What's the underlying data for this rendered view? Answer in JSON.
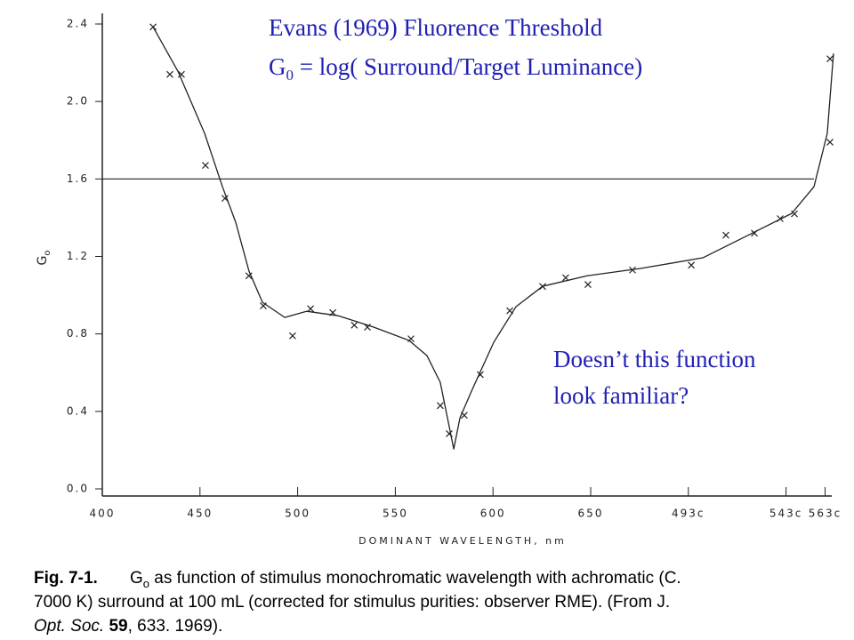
{
  "chart_data": {
    "type": "scatter",
    "title": "Evans (1969) Fluorence Threshold",
    "subtitle_parts": [
      "G",
      "0",
      " = log( Surround/Target Luminance)"
    ],
    "annotation": [
      "Doesn’t this function",
      "look familiar?"
    ],
    "xlabel": "DOMINANT WAVELENGTH, nm",
    "ylabel": "G",
    "ylabel_sub": "o",
    "xlim": [
      400,
      775
    ],
    "ylim": [
      0,
      2.4
    ],
    "xticks": [
      400,
      450,
      500,
      550,
      600,
      650,
      {
        "value": 700,
        "label": "493c"
      },
      {
        "value": 750,
        "label": "543c"
      },
      {
        "value": 770,
        "label": "563c"
      }
    ],
    "yticks": [
      {
        "value": 0,
        "label": "0.0"
      },
      0.4,
      0.8,
      1.2,
      1.6,
      {
        "value": 2,
        "label": "2.0"
      },
      2.4
    ],
    "reference_line": 1.6,
    "series": [
      {
        "name": "measured",
        "color": "#222",
        "x": [
          426.0,
          434.6,
          440.5,
          452.8,
          462.8,
          475.0,
          482.4,
          497.4,
          506.6,
          518.0,
          529.0,
          535.7,
          558.0,
          573.0,
          577.6,
          585.3,
          593.5,
          608.6,
          625.4,
          637.2,
          648.6,
          671.4,
          701.5,
          719.2,
          733.8,
          747.0,
          754.3,
          772.5,
          772.5
        ],
        "values": [
          2.385,
          2.14,
          2.14,
          1.67,
          1.5,
          1.1,
          0.945,
          0.79,
          0.93,
          0.91,
          0.845,
          0.835,
          0.775,
          0.43,
          0.285,
          0.38,
          0.59,
          0.92,
          1.045,
          1.09,
          1.055,
          1.13,
          1.155,
          1.31,
          1.32,
          1.395,
          1.42,
          1.79,
          2.22
        ]
      },
      {
        "name": "fit",
        "color": "#222",
        "x": [
          426.0,
          438.7,
          452.4,
          461.5,
          468.3,
          475.1,
          482.0,
          493.4,
          504.7,
          520.7,
          538.9,
          557.1,
          566.2,
          573.0,
          579.9,
          583.1,
          589.0,
          600.4,
          611.7,
          625.4,
          648.2,
          675.5,
          707.4,
          730.1,
          752.9,
          764.3,
          771.1,
          774.3
        ],
        "values": [
          2.385,
          2.156,
          1.835,
          1.56,
          1.376,
          1.124,
          0.963,
          0.885,
          0.917,
          0.894,
          0.835,
          0.766,
          0.688,
          0.55,
          0.206,
          0.367,
          0.505,
          0.757,
          0.94,
          1.046,
          1.1,
          1.138,
          1.193,
          1.307,
          1.422,
          1.56,
          1.835,
          2.248
        ]
      }
    ],
    "caption": {
      "label": "Fig. 7-1.",
      "line1": [
        "G",
        "o",
        " as function of stimulus monochromatic wavelength with achromatic (C."
      ],
      "line2": "7000 K) surround at 100 mL (corrected for stimulus purities: observer RME). (From J.",
      "line3": [
        "Opt. Soc. ",
        "59",
        ", 633. 1969)."
      ]
    }
  }
}
